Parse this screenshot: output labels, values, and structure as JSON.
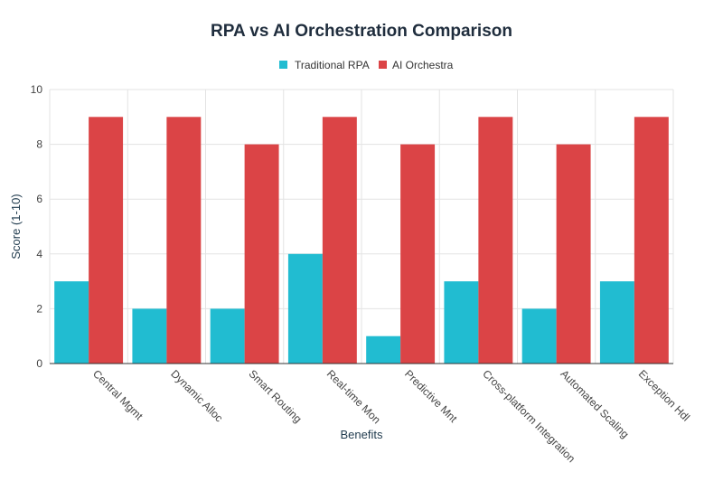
{
  "chart_data": {
    "type": "bar",
    "title": "RPA vs AI Orchestration Comparison",
    "xlabel": "Benefits",
    "ylabel": "Score (1-10)",
    "ylim": [
      0,
      10
    ],
    "yticks": [
      0,
      2,
      4,
      6,
      8,
      10
    ],
    "legend_position": "top-center",
    "grid": true,
    "categories": [
      "Central Mgmt",
      "Dynamic Alloc",
      "Smart Routing",
      "Real-time Mon",
      "Predictive Mnt",
      "Cross-platform Integration",
      "Automated Scaling",
      "Exception Hdl"
    ],
    "series": [
      {
        "name": "Traditional RPA",
        "color": "#21bcd1",
        "values": [
          3,
          2,
          2,
          4,
          1,
          3,
          2,
          3
        ]
      },
      {
        "name": "AI Orchestra",
        "color": "#db4446",
        "values": [
          9,
          9,
          8,
          9,
          8,
          9,
          8,
          9
        ]
      }
    ]
  }
}
